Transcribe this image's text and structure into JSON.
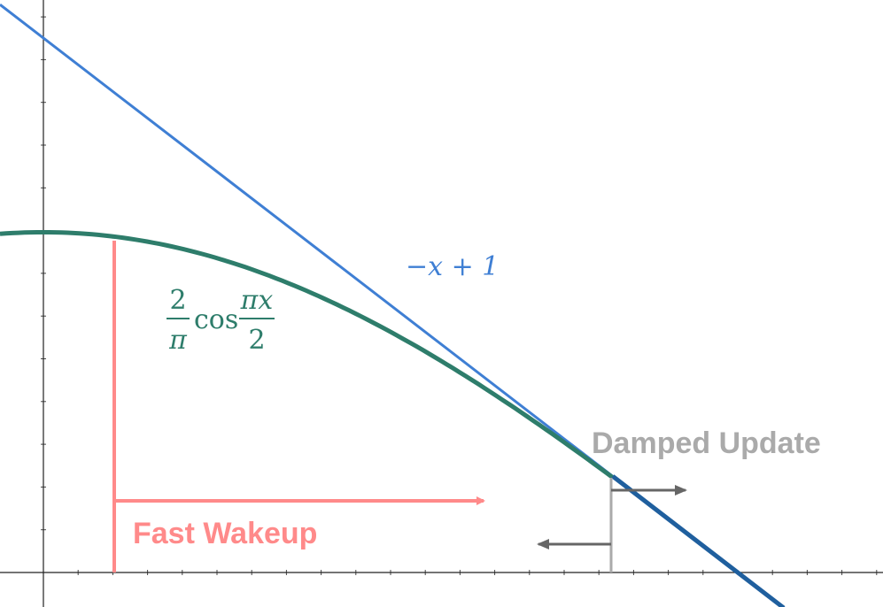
{
  "labels": {
    "line": "−x + 1",
    "curve": {
      "coef_numerator": "2",
      "coef_denominator": "π",
      "func": "cos",
      "arg_numerator": "πx",
      "arg_denominator": "2"
    },
    "fast": "Fast Wakeup",
    "damped": "Damped Update"
  }
}
